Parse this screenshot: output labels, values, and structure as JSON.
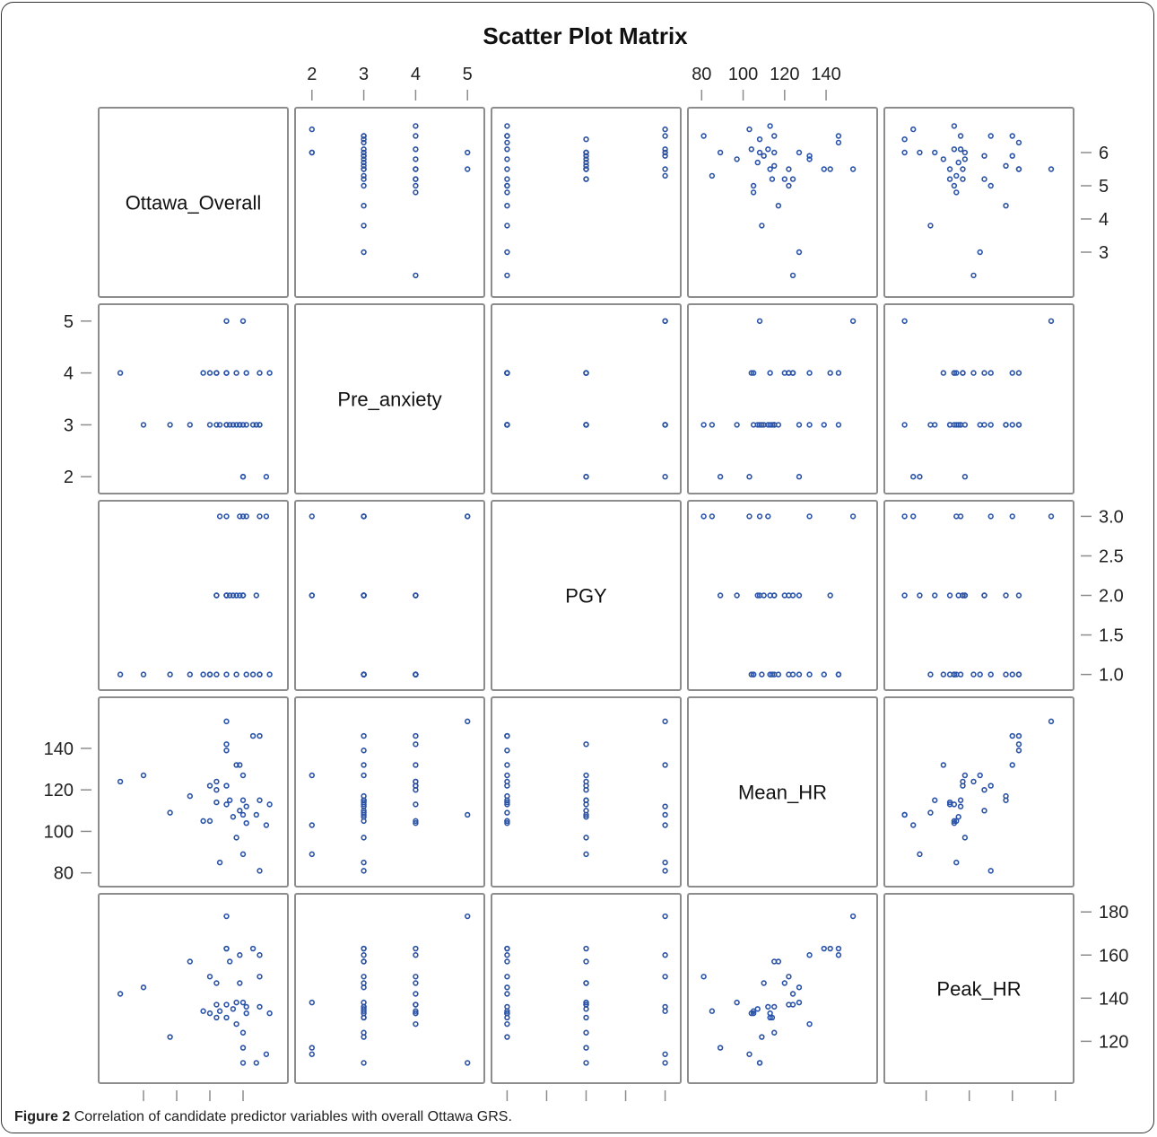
{
  "figure": {
    "caption_label": "Figure 2",
    "caption_text": "Correlation of candidate predictor variables with overall Ottawa GRS."
  },
  "chart_data": {
    "type": "scatter",
    "title": "Scatter Plot Matrix",
    "marker_color": "#2a53a8",
    "frame_color": "#8c8c8c",
    "grid": false,
    "variables": [
      {
        "name": "Ottawa_Overall",
        "range": [
          2,
          7
        ],
        "ticks": [
          "3",
          "4",
          "5",
          "6"
        ]
      },
      {
        "name": "Pre_anxiety",
        "range": [
          1.9,
          5.1
        ],
        "ticks": [
          "2",
          "3",
          "4",
          "5"
        ]
      },
      {
        "name": "PGY",
        "range": [
          0.95,
          3.05
        ],
        "ticks": [
          "1.0",
          "1.5",
          "2.0",
          "2.5",
          "3.0"
        ]
      },
      {
        "name": "Mean_HR",
        "range": [
          79,
          159
        ],
        "ticks": [
          "80",
          "100",
          "120",
          "140"
        ]
      },
      {
        "name": "Peak_HR",
        "range": [
          106,
          183
        ],
        "ticks": [
          "120",
          "140",
          "160",
          "180"
        ]
      }
    ],
    "observations": [
      {
        "Ottawa_Overall": 2.3,
        "Pre_anxiety": 4,
        "PGY": 1,
        "Mean_HR": 124,
        "Peak_HR": 142
      },
      {
        "Ottawa_Overall": 3.0,
        "Pre_anxiety": 3,
        "PGY": 1,
        "Mean_HR": 127,
        "Peak_HR": 145
      },
      {
        "Ottawa_Overall": 3.8,
        "Pre_anxiety": 3,
        "PGY": 1,
        "Mean_HR": 109,
        "Peak_HR": 122
      },
      {
        "Ottawa_Overall": 4.4,
        "Pre_anxiety": 3,
        "PGY": 1,
        "Mean_HR": 117,
        "Peak_HR": 157
      },
      {
        "Ottawa_Overall": 4.8,
        "Pre_anxiety": 4,
        "PGY": 1,
        "Mean_HR": 105,
        "Peak_HR": 134
      },
      {
        "Ottawa_Overall": 5.0,
        "Pre_anxiety": 4,
        "PGY": 1,
        "Mean_HR": 122,
        "Peak_HR": 150
      },
      {
        "Ottawa_Overall": 5.0,
        "Pre_anxiety": 3,
        "PGY": 1,
        "Mean_HR": 105,
        "Peak_HR": 133
      },
      {
        "Ottawa_Overall": 5.2,
        "Pre_anxiety": 3,
        "PGY": 1,
        "Mean_HR": 114,
        "Peak_HR": 131
      },
      {
        "Ottawa_Overall": 5.2,
        "Pre_anxiety": 4,
        "PGY": 2,
        "Mean_HR": 120,
        "Peak_HR": 147
      },
      {
        "Ottawa_Overall": 5.2,
        "Pre_anxiety": 4,
        "PGY": 2,
        "Mean_HR": 124,
        "Peak_HR": 137
      },
      {
        "Ottawa_Overall": 5.3,
        "Pre_anxiety": 3,
        "PGY": 3,
        "Mean_HR": 85,
        "Peak_HR": 134
      },
      {
        "Ottawa_Overall": 5.5,
        "Pre_anxiety": 3,
        "PGY": 2,
        "Mean_HR": 113,
        "Peak_HR": 131
      },
      {
        "Ottawa_Overall": 5.5,
        "Pre_anxiety": 5,
        "PGY": 3,
        "Mean_HR": 153,
        "Peak_HR": 178
      },
      {
        "Ottawa_Overall": 5.5,
        "Pre_anxiety": 4,
        "PGY": 2,
        "Mean_HR": 142,
        "Peak_HR": 163
      },
      {
        "Ottawa_Overall": 5.5,
        "Pre_anxiety": 3,
        "PGY": 1,
        "Mean_HR": 139,
        "Peak_HR": 163
      },
      {
        "Ottawa_Overall": 5.5,
        "Pre_anxiety": 4,
        "PGY": 2,
        "Mean_HR": 122,
        "Peak_HR": 137
      },
      {
        "Ottawa_Overall": 5.6,
        "Pre_anxiety": 3,
        "PGY": 2,
        "Mean_HR": 115,
        "Peak_HR": 157
      },
      {
        "Ottawa_Overall": 5.7,
        "Pre_anxiety": 3,
        "PGY": 2,
        "Mean_HR": 107,
        "Peak_HR": 135
      },
      {
        "Ottawa_Overall": 5.8,
        "Pre_anxiety": 4,
        "PGY": 1,
        "Mean_HR": 132,
        "Peak_HR": 128
      },
      {
        "Ottawa_Overall": 5.8,
        "Pre_anxiety": 3,
        "PGY": 2,
        "Mean_HR": 97,
        "Peak_HR": 138
      },
      {
        "Ottawa_Overall": 5.9,
        "Pre_anxiety": 3,
        "PGY": 2,
        "Mean_HR": 110,
        "Peak_HR": 147
      },
      {
        "Ottawa_Overall": 5.9,
        "Pre_anxiety": 3,
        "PGY": 3,
        "Mean_HR": 132,
        "Peak_HR": 160
      },
      {
        "Ottawa_Overall": 6.0,
        "Pre_anxiety": 2,
        "PGY": 2,
        "Mean_HR": 89,
        "Peak_HR": 117
      },
      {
        "Ottawa_Overall": 6.0,
        "Pre_anxiety": 3,
        "PGY": 2,
        "Mean_HR": 115,
        "Peak_HR": 124
      },
      {
        "Ottawa_Overall": 6.0,
        "Pre_anxiety": 5,
        "PGY": 3,
        "Mean_HR": 108,
        "Peak_HR": 110
      },
      {
        "Ottawa_Overall": 6.0,
        "Pre_anxiety": 2,
        "PGY": 2,
        "Mean_HR": 127,
        "Peak_HR": 138
      },
      {
        "Ottawa_Overall": 6.1,
        "Pre_anxiety": 3,
        "PGY": 3,
        "Mean_HR": 112,
        "Peak_HR": 136
      },
      {
        "Ottawa_Overall": 6.1,
        "Pre_anxiety": 4,
        "PGY": 1,
        "Mean_HR": 104,
        "Peak_HR": 133
      },
      {
        "Ottawa_Overall": 6.3,
        "Pre_anxiety": 3,
        "PGY": 1,
        "Mean_HR": 146,
        "Peak_HR": 163
      },
      {
        "Ottawa_Overall": 6.4,
        "Pre_anxiety": 3,
        "PGY": 2,
        "Mean_HR": 108,
        "Peak_HR": 110
      },
      {
        "Ottawa_Overall": 6.5,
        "Pre_anxiety": 3,
        "PGY": 3,
        "Mean_HR": 81,
        "Peak_HR": 150
      },
      {
        "Ottawa_Overall": 6.5,
        "Pre_anxiety": 3,
        "PGY": 1,
        "Mean_HR": 115,
        "Peak_HR": 136
      },
      {
        "Ottawa_Overall": 6.5,
        "Pre_anxiety": 4,
        "PGY": 1,
        "Mean_HR": 146,
        "Peak_HR": 160
      },
      {
        "Ottawa_Overall": 6.7,
        "Pre_anxiety": 2,
        "PGY": 3,
        "Mean_HR": 103,
        "Peak_HR": 114
      },
      {
        "Ottawa_Overall": 6.8,
        "Pre_anxiety": 4,
        "PGY": 1,
        "Mean_HR": 113,
        "Peak_HR": 133
      }
    ]
  }
}
